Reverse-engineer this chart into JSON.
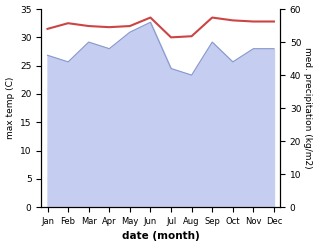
{
  "months": [
    "Jan",
    "Feb",
    "Mar",
    "Apr",
    "May",
    "Jun",
    "Jul",
    "Aug",
    "Sep",
    "Oct",
    "Nov",
    "Dec"
  ],
  "month_indices": [
    0,
    1,
    2,
    3,
    4,
    5,
    6,
    7,
    8,
    9,
    10,
    11
  ],
  "temp": [
    31.5,
    32.5,
    32.0,
    31.8,
    32.0,
    33.5,
    30.0,
    30.2,
    33.5,
    33.0,
    32.8,
    32.8
  ],
  "precip": [
    46,
    44,
    50,
    48,
    53,
    56,
    42,
    40,
    50,
    44,
    48,
    48
  ],
  "temp_color": "#cc4444",
  "precip_fill_color": "#c5cef0",
  "precip_line_color": "#8899cc",
  "ylim_left": [
    0,
    35
  ],
  "ylim_right": [
    0,
    60
  ],
  "ylabel_left": "max temp (C)",
  "ylabel_right": "med. precipitation (kg/m2)",
  "xlabel": "date (month)",
  "bg_color": "#ffffff"
}
